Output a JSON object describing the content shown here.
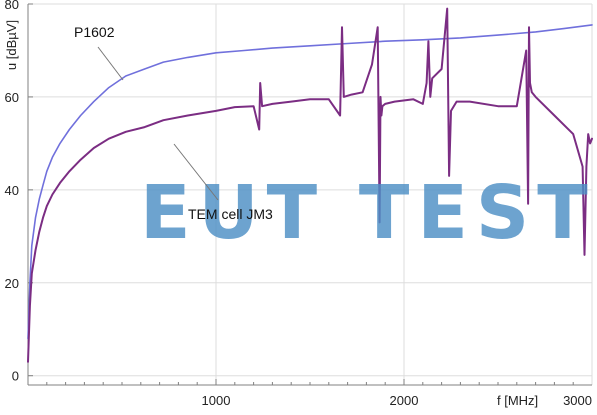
{
  "watermark": "EUT TEST",
  "chart_data": {
    "type": "line",
    "xlabel": "f [MHz]",
    "ylabel": "u [dBµV]",
    "xlim": [
      0,
      3000
    ],
    "ylim": [
      -2,
      80
    ],
    "x_ticks": [
      1000,
      2000,
      3000
    ],
    "x_tick_labels": [
      "1000",
      "2000",
      "3000"
    ],
    "y_ticks": [
      0,
      20,
      40,
      60,
      80
    ],
    "y_tick_labels": [
      "0",
      "20",
      "40",
      "60",
      "80"
    ],
    "grid": true,
    "colors": {
      "P1602": "#7070dc",
      "TEM cell JM3": "#7b2d83"
    },
    "series": [
      {
        "name": "P1602",
        "x": [
          0,
          10,
          20,
          40,
          60,
          80,
          100,
          130,
          170,
          220,
          280,
          350,
          430,
          520,
          620,
          720,
          850,
          1000,
          1150,
          1300,
          1500,
          1700,
          1900,
          2100,
          2300,
          2500,
          2700,
          2850,
          3000
        ],
        "y": [
          8,
          20,
          28,
          34,
          38,
          41,
          44,
          47,
          50,
          53,
          56,
          59,
          62,
          64.5,
          66,
          67.5,
          68.5,
          69.5,
          70,
          70.5,
          71,
          71.5,
          72,
          72.3,
          72.7,
          73.3,
          74,
          74.7,
          75.5
        ]
      },
      {
        "name": "TEM cell JM3",
        "x": [
          0,
          10,
          20,
          40,
          60,
          80,
          100,
          130,
          170,
          220,
          280,
          350,
          430,
          520,
          620,
          720,
          850,
          1000,
          1100,
          1200,
          1230,
          1235,
          1245,
          1300,
          1400,
          1500,
          1600,
          1660,
          1670,
          1680,
          1720,
          1780,
          1830,
          1860,
          1870,
          1875,
          1880,
          1885,
          1900,
          1950,
          2050,
          2100,
          2120,
          2130,
          2140,
          2150,
          2200,
          2230,
          2240,
          2250,
          2280,
          2350,
          2500,
          2600,
          2650,
          2660,
          2665,
          2670,
          2680,
          2700,
          2800,
          2900,
          2950,
          2960,
          2970,
          2980,
          2990,
          3000
        ],
        "y": [
          3,
          15,
          22,
          27,
          31,
          34,
          36.5,
          39,
          41.5,
          44,
          46.5,
          49,
          51,
          52.5,
          53.5,
          55,
          56,
          57,
          57.8,
          58,
          53,
          63,
          58,
          58.5,
          59,
          59.5,
          59.5,
          56,
          75,
          60,
          60.5,
          61,
          67,
          75,
          33,
          60,
          56,
          58,
          58.5,
          59,
          59.5,
          58.5,
          63,
          72,
          60,
          64,
          66,
          79,
          43,
          57,
          59,
          59,
          58,
          58,
          70,
          37,
          75,
          63,
          61,
          60,
          56,
          52,
          45,
          26,
          45,
          52,
          50,
          51
        ]
      }
    ],
    "annotations": [
      {
        "text": "P1602",
        "series": "P1602"
      },
      {
        "text": "TEM cell JM3",
        "series": "TEM cell JM3"
      }
    ]
  }
}
